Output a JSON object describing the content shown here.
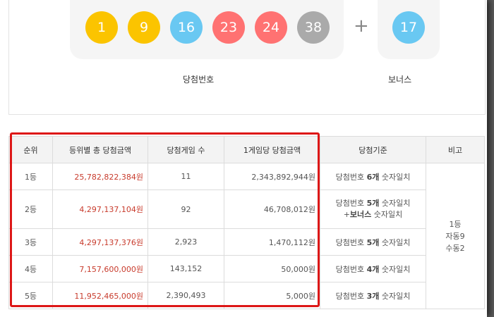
{
  "winning": {
    "numbers": [
      "1",
      "9",
      "16",
      "23",
      "24",
      "38"
    ],
    "colors": [
      "#fbc400",
      "#fbc400",
      "#69c8f2",
      "#ff7272",
      "#ff7272",
      "#aaaaaa"
    ],
    "plus": "+",
    "bonus": "17",
    "bonus_color": "#69c8f2",
    "label": "당첨번호",
    "bonus_label": "보너스"
  },
  "table": {
    "headers": [
      "순위",
      "등위별 총 당첨금액",
      "당첨게임 수",
      "1게임당 당첨금액",
      "당첨기준",
      "비고"
    ],
    "rows": [
      {
        "rank": "1등",
        "total": "25,782,822,384원",
        "games": "11",
        "per": "2,343,892,944원",
        "crit_a": "당첨번호 ",
        "crit_b": "6개",
        "crit_c": " 숫자일치"
      },
      {
        "rank": "2등",
        "total": "4,297,137,104원",
        "games": "92",
        "per": "46,708,012원",
        "crit_a": "당첨번호 ",
        "crit_b": "5개",
        "crit_c": " 숫자일치",
        "crit2_a": "+",
        "crit2_b": "보너스",
        "crit2_c": " 숫자일치"
      },
      {
        "rank": "3등",
        "total": "4,297,137,376원",
        "games": "2,923",
        "per": "1,470,112원",
        "crit_a": "당첨번호 ",
        "crit_b": "5개",
        "crit_c": " 숫자일치"
      },
      {
        "rank": "4등",
        "total": "7,157,600,000원",
        "games": "143,152",
        "per": "50,000원",
        "crit_a": "당첨번호 ",
        "crit_b": "4개",
        "crit_c": " 숫자일치"
      },
      {
        "rank": "5등",
        "total": "11,952,465,000원",
        "games": "2,390,493",
        "per": "5,000원",
        "crit_a": "당첨번호 ",
        "crit_b": "3개",
        "crit_c": " 숫자일치"
      }
    ],
    "note": [
      "1등",
      "자동9",
      "수동2"
    ]
  },
  "colors": {
    "amount_red": "#c83b2c",
    "highlight_border": "#dd1717"
  }
}
